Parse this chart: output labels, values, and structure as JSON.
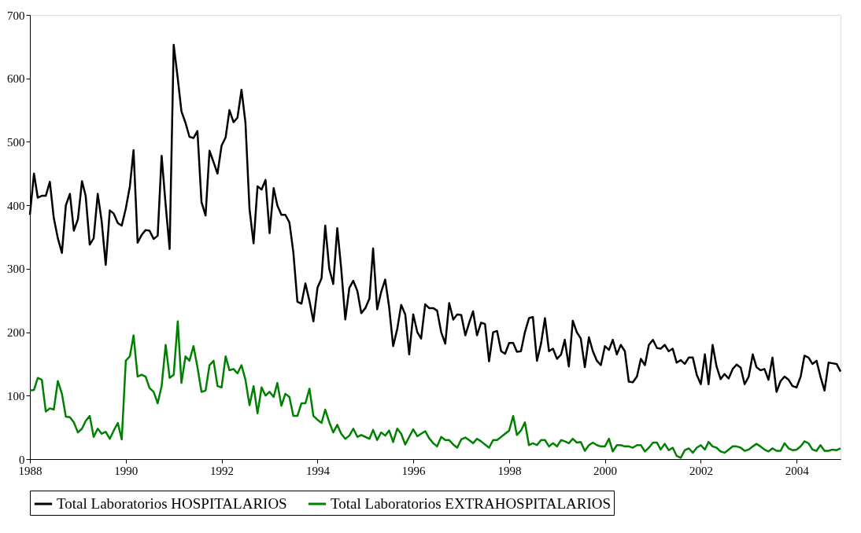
{
  "chart_data": {
    "type": "line",
    "x": [
      "1988-01",
      "1988-02",
      "1988-03",
      "1988-04",
      "1988-05",
      "1988-06",
      "1988-07",
      "1988-08",
      "1988-09",
      "1988-10",
      "1988-11",
      "1988-12",
      "1989-01",
      "1989-02",
      "1989-03",
      "1989-04",
      "1989-05",
      "1989-06",
      "1989-07",
      "1989-08",
      "1989-09",
      "1989-10",
      "1989-11",
      "1989-12",
      "1990-01",
      "1990-02",
      "1990-03",
      "1990-04",
      "1990-05",
      "1990-06",
      "1990-07",
      "1990-08",
      "1990-09",
      "1990-10",
      "1990-11",
      "1990-12",
      "1991-01",
      "1991-02",
      "1991-03",
      "1991-04",
      "1991-05",
      "1991-06",
      "1991-07",
      "1991-08",
      "1991-09",
      "1991-10",
      "1991-11",
      "1991-12",
      "1992-01",
      "1992-02",
      "1992-03",
      "1992-04",
      "1992-05",
      "1992-06",
      "1992-07",
      "1992-08",
      "1992-09",
      "1992-10",
      "1992-11",
      "1992-12",
      "1993-01",
      "1993-02",
      "1993-03",
      "1993-04",
      "1993-05",
      "1993-06",
      "1993-07",
      "1993-08",
      "1993-09",
      "1993-10",
      "1993-11",
      "1993-12",
      "1994-01",
      "1994-02",
      "1994-03",
      "1994-04",
      "1994-05",
      "1994-06",
      "1994-07",
      "1994-08",
      "1994-09",
      "1994-10",
      "1994-11",
      "1994-12",
      "1995-01",
      "1995-02",
      "1995-03",
      "1995-04",
      "1995-05",
      "1995-06",
      "1995-07",
      "1995-08",
      "1995-09",
      "1995-10",
      "1995-11",
      "1995-12",
      "1996-01",
      "1996-02",
      "1996-03",
      "1996-04",
      "1996-05",
      "1996-06",
      "1996-07",
      "1996-08",
      "1996-09",
      "1996-10",
      "1996-11",
      "1996-12",
      "1997-01",
      "1997-02",
      "1997-03",
      "1997-04",
      "1997-05",
      "1997-06",
      "1997-07",
      "1997-08",
      "1997-09",
      "1997-10",
      "1997-11",
      "1997-12",
      "1998-01",
      "1998-02",
      "1998-03",
      "1998-04",
      "1998-05",
      "1998-06",
      "1998-07",
      "1998-08",
      "1998-09",
      "1998-10",
      "1998-11",
      "1998-12",
      "1999-01",
      "1999-02",
      "1999-03",
      "1999-04",
      "1999-05",
      "1999-06",
      "1999-07",
      "1999-08",
      "1999-09",
      "1999-10",
      "1999-11",
      "1999-12",
      "2000-01",
      "2000-02",
      "2000-03",
      "2000-04",
      "2000-05",
      "2000-06",
      "2000-07",
      "2000-08",
      "2000-09",
      "2000-10",
      "2000-11",
      "2000-12",
      "2001-01",
      "2001-02",
      "2001-03",
      "2001-04",
      "2001-05",
      "2001-06",
      "2001-07",
      "2001-08",
      "2001-09",
      "2001-10",
      "2001-11",
      "2001-12",
      "2002-01",
      "2002-02",
      "2002-03",
      "2002-04",
      "2002-05",
      "2002-06",
      "2002-07",
      "2002-08",
      "2002-09",
      "2002-10",
      "2002-11",
      "2002-12",
      "2003-01",
      "2003-02",
      "2003-03",
      "2003-04",
      "2003-05",
      "2003-06",
      "2003-07",
      "2003-08",
      "2003-09",
      "2003-10",
      "2003-11",
      "2003-12",
      "2004-01",
      "2004-02",
      "2004-03",
      "2004-04",
      "2004-05",
      "2004-06",
      "2004-07",
      "2004-08",
      "2004-09",
      "2004-10",
      "2004-11",
      "2004-12"
    ],
    "xlim": [
      "1988-01",
      "2004-12"
    ],
    "xticks": [
      "1988",
      "1990",
      "1992",
      "1994",
      "1996",
      "1998",
      "2000",
      "2002",
      "2004"
    ],
    "ylim": [
      0,
      700
    ],
    "yticks": [
      0,
      100,
      200,
      300,
      400,
      500,
      600,
      700
    ],
    "legend": "bottom",
    "series": [
      {
        "name": "Total Laboratorios HOSPITALARIOS",
        "color": "#000000",
        "values": [
          385,
          450,
          412,
          415,
          415,
          437,
          380,
          348,
          325,
          400,
          418,
          360,
          378,
          438,
          415,
          338,
          348,
          418,
          375,
          306,
          392,
          387,
          372,
          368,
          395,
          430,
          487,
          341,
          353,
          361,
          360,
          347,
          352,
          478,
          400,
          331,
          653,
          600,
          548,
          530,
          508,
          506,
          517,
          405,
          384,
          486,
          468,
          450,
          494,
          507,
          550,
          531,
          538,
          582,
          530,
          394,
          340,
          430,
          425,
          440,
          356,
          427,
          400,
          385,
          385,
          373,
          326,
          248,
          245,
          277,
          249,
          217,
          270,
          285,
          368,
          300,
          276,
          364,
          300,
          220,
          270,
          281,
          265,
          230,
          238,
          253,
          332,
          236,
          263,
          283,
          240,
          178,
          205,
          243,
          228,
          165,
          228,
          200,
          190,
          244,
          238,
          238,
          234,
          200,
          182,
          246,
          220,
          228,
          227,
          195,
          214,
          233,
          195,
          215,
          213,
          154,
          200,
          202,
          170,
          166,
          183,
          183,
          169,
          170,
          200,
          222,
          224,
          155,
          182,
          222,
          170,
          174,
          158,
          165,
          188,
          146,
          218,
          200,
          190,
          145,
          192,
          170,
          155,
          148,
          178,
          172,
          188,
          165,
          180,
          170,
          122,
          121,
          130,
          158,
          148,
          180,
          188,
          175,
          174,
          180,
          170,
          174,
          152,
          156,
          150,
          160,
          160,
          133,
          118,
          165,
          118,
          180,
          146,
          126,
          134,
          127,
          142,
          149,
          144,
          118,
          130,
          165,
          145,
          140,
          142,
          125,
          160,
          106,
          123,
          130,
          125,
          115,
          113,
          130,
          163,
          160,
          150,
          155,
          130,
          108,
          152,
          151,
          150,
          138
        ]
      },
      {
        "name": "Total Laboratorios EXTRAHOSPITALARIOS",
        "color": "#008000",
        "values": [
          108,
          109,
          128,
          125,
          75,
          80,
          78,
          123,
          103,
          67,
          66,
          58,
          42,
          48,
          60,
          68,
          35,
          48,
          40,
          43,
          32,
          45,
          57,
          31,
          155,
          162,
          195,
          130,
          133,
          130,
          112,
          106,
          88,
          115,
          180,
          128,
          133,
          217,
          120,
          162,
          155,
          178,
          145,
          106,
          108,
          148,
          155,
          115,
          113,
          162,
          140,
          142,
          135,
          148,
          125,
          85,
          115,
          72,
          113,
          100,
          106,
          98,
          120,
          84,
          103,
          98,
          68,
          68,
          88,
          88,
          111,
          68,
          62,
          57,
          78,
          58,
          42,
          54,
          40,
          32,
          37,
          48,
          35,
          38,
          35,
          32,
          46,
          30,
          42,
          37,
          45,
          27,
          48,
          40,
          23,
          35,
          47,
          36,
          40,
          44,
          33,
          25,
          20,
          35,
          30,
          30,
          23,
          18,
          31,
          34,
          30,
          25,
          32,
          28,
          23,
          18,
          30,
          30,
          35,
          40,
          45,
          68,
          38,
          45,
          58,
          22,
          25,
          22,
          30,
          30,
          20,
          25,
          20,
          30,
          28,
          25,
          32,
          26,
          27,
          13,
          22,
          26,
          22,
          20,
          20,
          32,
          12,
          22,
          22,
          20,
          20,
          18,
          22,
          22,
          12,
          18,
          26,
          26,
          15,
          24,
          14,
          18,
          5,
          2,
          14,
          17,
          10,
          18,
          22,
          15,
          27,
          20,
          18,
          12,
          10,
          15,
          20,
          20,
          18,
          13,
          15,
          20,
          24,
          20,
          15,
          12,
          17,
          13,
          13,
          25,
          17,
          14,
          15,
          20,
          28,
          25,
          15,
          13,
          22,
          13,
          13,
          15,
          14,
          17
        ]
      }
    ]
  }
}
